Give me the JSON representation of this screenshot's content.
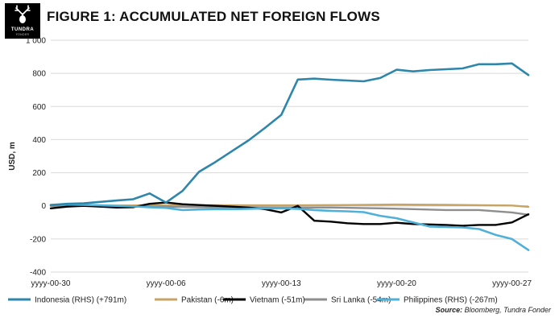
{
  "header": {
    "logo_text": "TUNDRA",
    "logo_subtext": "FONDER",
    "title": "FIGURE 1: ACCUMULATED NET FOREIGN FLOWS"
  },
  "source": {
    "label": "Source:",
    "text": " Bloomberg, Tundra Fonder"
  },
  "chart_data": {
    "type": "line",
    "ylabel": "USD, m",
    "xlabel": "",
    "ylim": [
      -400,
      1000
    ],
    "yticks": [
      -400,
      -200,
      0,
      200,
      400,
      600,
      800,
      1000
    ],
    "ytick_labels": [
      "-400",
      "-200",
      "0",
      "200",
      "400",
      "600",
      "800",
      "1 000"
    ],
    "xlim": [
      0,
      29
    ],
    "xtick_positions": [
      0,
      7,
      14,
      21,
      28
    ],
    "xtick_labels": [
      "yyyy-00-30",
      "yyyy-00-06",
      "yyyy-00-13",
      "yyyy-00-20",
      "yyyy-00-27"
    ],
    "grid": "horizontal",
    "legend_position": "bottom",
    "series": [
      {
        "name": "Indonesia (RHS) (+791m)",
        "color": "#2E86AB",
        "x": [
          0,
          1,
          2,
          3,
          4,
          5,
          6,
          7,
          8,
          9,
          10,
          11,
          12,
          13,
          14,
          15,
          16,
          17,
          18,
          19,
          20,
          21,
          22,
          23,
          24,
          25,
          26,
          27,
          28,
          29
        ],
        "values": [
          5,
          12,
          15,
          24,
          32,
          40,
          75,
          20,
          90,
          205,
          265,
          330,
          395,
          470,
          550,
          763,
          768,
          762,
          757,
          752,
          772,
          822,
          812,
          820,
          825,
          830,
          855,
          855,
          860,
          790
        ]
      },
      {
        "name": "Pakistan (-6m)",
        "color": "#C8A464",
        "x": [
          0,
          4,
          7,
          10,
          14,
          18,
          21,
          24,
          28,
          29
        ],
        "values": [
          0,
          2,
          3,
          4,
          3,
          5,
          8,
          6,
          2,
          -6
        ]
      },
      {
        "name": "Vietnam (-51m)",
        "color": "#000000",
        "x": [
          0,
          1,
          2,
          3,
          4,
          5,
          6,
          7,
          8,
          9,
          10,
          11,
          12,
          13,
          14,
          15,
          16,
          17,
          18,
          19,
          20,
          21,
          22,
          23,
          24,
          25,
          26,
          27,
          28,
          29
        ],
        "values": [
          -15,
          -5,
          0,
          -5,
          -10,
          -8,
          12,
          20,
          10,
          5,
          0,
          -5,
          -10,
          -20,
          -40,
          0,
          -90,
          -95,
          -105,
          -110,
          -110,
          -102,
          -110,
          -112,
          -115,
          -120,
          -115,
          -115,
          -100,
          -51
        ]
      },
      {
        "name": "Sri Lanka (-54m)",
        "color": "#8E8E8E",
        "x": [
          0,
          4,
          7,
          10,
          14,
          17,
          20,
          22,
          24,
          26,
          28,
          29
        ],
        "values": [
          0,
          -2,
          -5,
          -8,
          -10,
          -10,
          -15,
          -20,
          -25,
          -25,
          -40,
          -54
        ]
      },
      {
        "name": "Philippines (RHS) (-267m)",
        "color": "#4FB0D8",
        "x": [
          0,
          1,
          2,
          3,
          4,
          5,
          6,
          7,
          8,
          9,
          10,
          11,
          12,
          13,
          14,
          15,
          16,
          17,
          18,
          19,
          20,
          21,
          22,
          23,
          24,
          25,
          26,
          27,
          28,
          29
        ],
        "values": [
          5,
          8,
          6,
          3,
          0,
          -3,
          -8,
          -12,
          -25,
          -22,
          -20,
          -20,
          -18,
          -15,
          -15,
          -18,
          -25,
          -30,
          -33,
          -38,
          -60,
          -75,
          -100,
          -125,
          -128,
          -130,
          -140,
          -175,
          -200,
          -267
        ]
      }
    ]
  }
}
